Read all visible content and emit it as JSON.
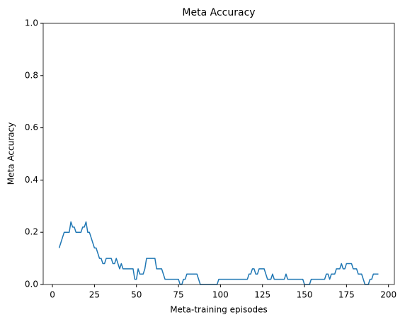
{
  "chart_data": {
    "type": "line",
    "title": "Meta Accuracy",
    "xlabel": "Meta-training episodes",
    "ylabel": "Meta Accuracy",
    "xlim": [
      -5.5,
      203.5
    ],
    "xticks": [
      0,
      25,
      50,
      75,
      100,
      125,
      150,
      175,
      200
    ],
    "ylim": [
      0,
      1
    ],
    "yticks": [
      {
        "value": 0,
        "label": "0.0"
      },
      {
        "value": 0.2,
        "label": "0.2"
      },
      {
        "value": 0.4,
        "label": "0.4"
      },
      {
        "value": 0.6,
        "label": "0.6"
      },
      {
        "value": 0.8,
        "label": "0.8"
      },
      {
        "value": 1,
        "label": "1.0"
      }
    ],
    "grid": false,
    "x": [
      4,
      5,
      6,
      7,
      8,
      9,
      10,
      11,
      12,
      13,
      14,
      15,
      16,
      17,
      18,
      19,
      20,
      21,
      22,
      23,
      24,
      25,
      26,
      27,
      28,
      29,
      30,
      31,
      32,
      33,
      34,
      35,
      36,
      37,
      38,
      39,
      40,
      41,
      42,
      43,
      44,
      45,
      46,
      47,
      48,
      49,
      50,
      51,
      52,
      53,
      54,
      55,
      56,
      57,
      58,
      59,
      60,
      61,
      62,
      63,
      64,
      65,
      66,
      67,
      68,
      69,
      70,
      71,
      72,
      73,
      74,
      75,
      76,
      77,
      78,
      79,
      80,
      81,
      82,
      83,
      84,
      85,
      86,
      87,
      88,
      89,
      90,
      91,
      92,
      93,
      94,
      95,
      96,
      97,
      98,
      99,
      100,
      101,
      102,
      103,
      104,
      105,
      106,
      107,
      108,
      109,
      110,
      111,
      112,
      113,
      114,
      115,
      116,
      117,
      118,
      119,
      120,
      121,
      122,
      123,
      124,
      125,
      126,
      127,
      128,
      129,
      130,
      131,
      132,
      133,
      134,
      135,
      136,
      137,
      138,
      139,
      140,
      141,
      142,
      143,
      144,
      145,
      146,
      147,
      148,
      149,
      150,
      151,
      152,
      153,
      154,
      155,
      156,
      157,
      158,
      159,
      160,
      161,
      162,
      163,
      164,
      165,
      166,
      167,
      168,
      169,
      170,
      171,
      172,
      173,
      174,
      175,
      176,
      177,
      178,
      179,
      180,
      181,
      182,
      183,
      184,
      185,
      186,
      187,
      188,
      189,
      190,
      191,
      192,
      193,
      194
    ],
    "series": [
      {
        "name": "Meta Accuracy",
        "color": "#1f77b4",
        "values": [
          0.14,
          0.16,
          0.18,
          0.2,
          0.2,
          0.2,
          0.2,
          0.24,
          0.22,
          0.22,
          0.2,
          0.2,
          0.2,
          0.2,
          0.22,
          0.22,
          0.24,
          0.2,
          0.2,
          0.18,
          0.16,
          0.14,
          0.14,
          0.12,
          0.1,
          0.1,
          0.08,
          0.08,
          0.1,
          0.1,
          0.1,
          0.1,
          0.08,
          0.08,
          0.1,
          0.08,
          0.06,
          0.08,
          0.06,
          0.06,
          0.06,
          0.06,
          0.06,
          0.06,
          0.06,
          0.02,
          0.02,
          0.06,
          0.04,
          0.04,
          0.04,
          0.06,
          0.1,
          0.1,
          0.1,
          0.1,
          0.1,
          0.1,
          0.06,
          0.06,
          0.06,
          0.06,
          0.04,
          0.02,
          0.02,
          0.02,
          0.02,
          0.02,
          0.02,
          0.02,
          0.02,
          0.02,
          0,
          0,
          0.02,
          0.02,
          0.04,
          0.04,
          0.04,
          0.04,
          0.04,
          0.04,
          0.04,
          0.02,
          0,
          0,
          0,
          0,
          0,
          0,
          0,
          0,
          0,
          0,
          0,
          0.02,
          0.02,
          0.02,
          0.02,
          0.02,
          0.02,
          0.02,
          0.02,
          0.02,
          0.02,
          0.02,
          0.02,
          0.02,
          0.02,
          0.02,
          0.02,
          0.02,
          0.02,
          0.04,
          0.04,
          0.06,
          0.06,
          0.04,
          0.04,
          0.06,
          0.06,
          0.06,
          0.06,
          0.04,
          0.02,
          0.02,
          0.02,
          0.04,
          0.02,
          0.02,
          0.02,
          0.02,
          0.02,
          0.02,
          0.02,
          0.04,
          0.02,
          0.02,
          0.02,
          0.02,
          0.02,
          0.02,
          0.02,
          0.02,
          0.02,
          0.02,
          0,
          0,
          0,
          0,
          0.02,
          0.02,
          0.02,
          0.02,
          0.02,
          0.02,
          0.02,
          0.02,
          0.02,
          0.04,
          0.04,
          0.02,
          0.04,
          0.04,
          0.04,
          0.06,
          0.06,
          0.06,
          0.08,
          0.06,
          0.06,
          0.08,
          0.08,
          0.08,
          0.08,
          0.06,
          0.06,
          0.06,
          0.04,
          0.04,
          0.04,
          0.02,
          0,
          0,
          0,
          0.02,
          0.02,
          0.04,
          0.04,
          0.04,
          0.04
        ]
      }
    ]
  }
}
